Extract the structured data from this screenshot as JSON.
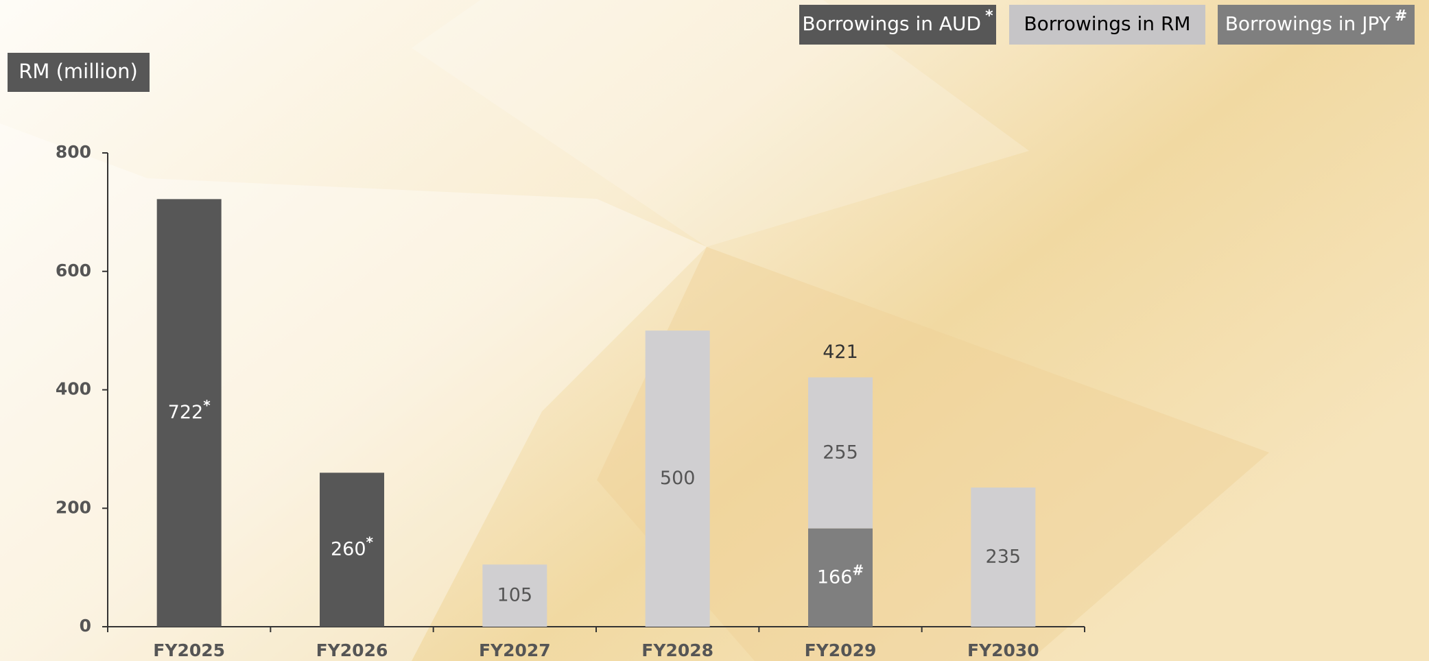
{
  "chart_data": {
    "type": "stacked-bar",
    "ylabel": "RM (million)",
    "categories": [
      "FY2025",
      "FY2026",
      "FY2027",
      "FY2028",
      "FY2029",
      "FY2030"
    ],
    "series": [
      {
        "name": "Borrowings in AUD",
        "mark": "*",
        "color": "#575757",
        "values": [
          722,
          260,
          null,
          null,
          null,
          null
        ]
      },
      {
        "name": "Borrowings in JPY",
        "mark": "#",
        "color": "#7f7f7f",
        "values": [
          null,
          null,
          null,
          null,
          166,
          null
        ]
      },
      {
        "name": "Borrowings in RM",
        "color": "#d0cfd1",
        "values": [
          null,
          null,
          105,
          500,
          255,
          235
        ]
      }
    ],
    "totals": [
      null,
      null,
      null,
      null,
      421,
      null
    ],
    "legend_order": [
      0,
      2,
      1
    ],
    "ylim": [
      0,
      800
    ],
    "yticks": [
      0,
      200,
      400,
      600,
      800
    ],
    "grid": false
  }
}
